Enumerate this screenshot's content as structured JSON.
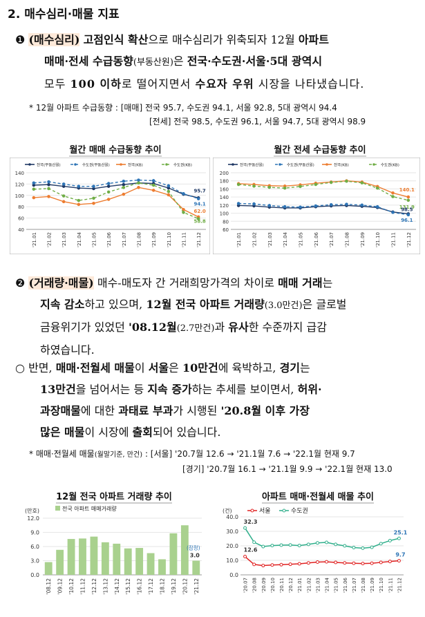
{
  "section_title": "2. 매수심리·매물 지표",
  "p1": {
    "bullet": "❶",
    "tag": "(매수심리)",
    "l1a": "고점인식 확산",
    "l1b": "으로 매수심리가 위축되자 12월",
    "l1c": "아파트",
    "l2a": "매매·전세 수급동향",
    "l2b": "(부동산원)",
    "l2c": "은",
    "l2d": "전국·수도권·서울·5대 광역시",
    "l3a": "모두",
    "l3b": "100 이하",
    "l3c": "로 떨어지면서",
    "l3d": "수요자 우위",
    "l3e": "시장을 나타냈습니다."
  },
  "note1": {
    "line1": "* 12월 아파트 수급동향 : [매매] 전국 95.7, 수도권 94.1, 서울 92.8, 5대 광역시 94.4",
    "line2": "[전세] 전국 98.5, 수도권 96.1, 서울 94.7, 5대 광역시 98.9"
  },
  "chart_titles": {
    "c1": "월간 매매 수급동향 추이",
    "c2": "월간 전세 수급동향 추이",
    "c3": "12월 전국 아파트 거래량 추이",
    "c4": "아파트 매매·전월세 매물 추이"
  },
  "p2": {
    "bullet": "❷",
    "tag": "(거래량·매물)",
    "l1a": "매수-매도자 간 거래희망가격의 차이로",
    "l1b": "매매 거래",
    "l1c": "는",
    "l2a": "지속 감소",
    "l2b": "하고 있으며,",
    "l2c": "12월 전국 아파트 거래량",
    "l2d": "(3.0만건)",
    "l2e": "은 글로벌",
    "l3": "금융위기가 있었던",
    "l3b": "'08.12월",
    "l3c": "(2.7만건)",
    "l3d": "과",
    "l3e": "유사",
    "l3f": "한 수준까지 급감",
    "l4": "하였습니다."
  },
  "p3": {
    "bullet": "○",
    "l1a": "반면,",
    "l1b": "매매·전월세 매물",
    "l1c": "이",
    "l1d": "서울",
    "l1e": "은",
    "l1f": "10만건",
    "l1g": "에 육박하고,",
    "l1h": "경기",
    "l1i": "는",
    "l2a": "13만건",
    "l2b": "을 넘어서는 등",
    "l2c": "지속 증가",
    "l2d": "하는 추세를 보이면서,",
    "l2e": "허위·",
    "l3a": "과장매물",
    "l3b": "에 대한",
    "l3c": "과태료 부과",
    "l3d": "가 시행된",
    "l3e": "'20.8월 이후 가장",
    "l4a": "많은 매물",
    "l4b": "이 시장에",
    "l4c": "출회",
    "l4d": "되어 있습니다."
  },
  "note2": {
    "line1a": "* 매매·전월세 매물",
    "line1b": "(월말기준, 만건)",
    "line1c": ": [서울] '20.7월 12.6 → '21.1월 7.6 → '22.1월 현재 9.7",
    "line2": "[경기] '20.7월 16.1 → '21.1월 9.9 → '22.1월 현재 13.0"
  },
  "chart_data": [
    {
      "type": "line",
      "title": "월간 매매 수급동향 추이",
      "categories": [
        "'21.01",
        "'21.02",
        "'21.03",
        "'21.04",
        "'21.05",
        "'21.06",
        "'21.07",
        "'21.08",
        "'21.09",
        "'21.10",
        "'21.11",
        "'21.12"
      ],
      "ylim": [
        40,
        140
      ],
      "yticks": [
        40,
        60,
        80,
        100,
        120,
        140
      ],
      "series": [
        {
          "name": "전국(부동산원)",
          "color": "#1f3864",
          "dash": "",
          "values": [
            118,
            119,
            116,
            113,
            112,
            116,
            119,
            122,
            121,
            113,
            102,
            95.7
          ]
        },
        {
          "name": "수도권(부동산원)",
          "color": "#2e75b6",
          "dash": "4,3",
          "values": [
            122,
            124,
            120,
            116,
            116,
            121,
            125,
            127,
            126,
            117,
            103,
            94.1
          ]
        },
        {
          "name": "전국(KB)",
          "color": "#ed7d31",
          "dash": "",
          "values": [
            96,
            98,
            89,
            84,
            86,
            93,
            102,
            114,
            109,
            101,
            75,
            62.0
          ]
        },
        {
          "name": "수도권(KB)",
          "color": "#70ad47",
          "dash": "4,3",
          "values": [
            111,
            112,
            99,
            91,
            95,
            106,
            114,
            122,
            118,
            107,
            70,
            58.8
          ]
        }
      ],
      "labels": [
        "95.7",
        "94.1",
        "62.0",
        "58.8"
      ]
    },
    {
      "type": "line",
      "title": "월간 전세 수급동향 추이",
      "categories": [
        "'21.01",
        "'21.02",
        "'21.03",
        "'21.04",
        "'21.05",
        "'21.06",
        "'21.07",
        "'21.08",
        "'21.09",
        "'21.10",
        "'21.11",
        "'21.12"
      ],
      "ylim": [
        60,
        200
      ],
      "yticks": [
        60,
        80,
        100,
        120,
        140,
        160,
        180,
        200
      ],
      "series": [
        {
          "name": "전국(부동산원)",
          "color": "#1f3864",
          "dash": "",
          "values": [
            119,
            118,
            115,
            113,
            113,
            116,
            118,
            119,
            117,
            114,
            103,
            98.5
          ]
        },
        {
          "name": "수도권(부동산원)",
          "color": "#2e75b6",
          "dash": "4,3",
          "values": [
            124,
            123,
            119,
            116,
            115,
            118,
            121,
            122,
            120,
            116,
            102,
            96.1
          ]
        },
        {
          "name": "전국(KB)",
          "color": "#ed7d31",
          "dash": "",
          "values": [
            173,
            171,
            168,
            167,
            170,
            174,
            177,
            180,
            177,
            166,
            150,
            140.1
          ]
        },
        {
          "name": "수도권(KB)",
          "color": "#70ad47",
          "dash": "4,3",
          "values": [
            171,
            167,
            164,
            162,
            166,
            171,
            176,
            179,
            175,
            162,
            141,
            131.9
          ]
        }
      ],
      "labels": [
        "140.1",
        "131.9",
        "98.5",
        "96.1"
      ]
    },
    {
      "type": "bar",
      "title": "12월 전국 아파트 거래량 추이",
      "unit": "(만호)",
      "legend": "전국 아파트 매매거래량",
      "categories": [
        "'08.12",
        "'09.12",
        "'10.12",
        "'11.12",
        "'12.12",
        "'13.12",
        "'14.12",
        "'15.12",
        "'16.12",
        "'17.12",
        "'18.12",
        "'19.12",
        "'20.12",
        "'21.12"
      ],
      "values": [
        2.7,
        5.3,
        7.6,
        7.7,
        8.1,
        6.9,
        6.6,
        5.6,
        5.7,
        4.6,
        3.3,
        8.8,
        10.5,
        3.0
      ],
      "ylim": [
        0,
        12
      ],
      "yticks": [
        "0.0",
        "3.0",
        "6.0",
        "9.0",
        "12.0"
      ],
      "last_note": "(잠정)",
      "last_label": "3.0",
      "color": "#a9d18e"
    },
    {
      "type": "line",
      "title": "아파트 매매·전월세 매물 추이",
      "unit": "(건)",
      "categories": [
        "'20.07",
        "'20.08",
        "'20.09",
        "'20.10",
        "'20.11",
        "'20.12",
        "'21.01",
        "'21.02",
        "'21.03",
        "'21.04",
        "'21.05",
        "'21.06",
        "'21.07",
        "'21.08",
        "'21.09",
        "'21.10",
        "'21.11",
        "'21.12"
      ],
      "ylim": [
        0,
        40
      ],
      "yticks": [
        "0.0",
        "10.0",
        "20.0",
        "30.0",
        "40.0"
      ],
      "series": [
        {
          "name": "서울",
          "color": "#e02020",
          "values": [
            12.6,
            7.2,
            6.4,
            6.8,
            7.0,
            7.3,
            7.6,
            8.2,
            8.8,
            9.0,
            8.6,
            8.2,
            8.0,
            7.8,
            8.0,
            8.6,
            9.2,
            9.7
          ]
        },
        {
          "name": "수도권",
          "color": "#2eae8a",
          "values": [
            32.3,
            22.5,
            19.5,
            20.2,
            20.5,
            20.6,
            20.2,
            21.0,
            22.0,
            22.4,
            21.0,
            20.0,
            18.8,
            18.4,
            19.0,
            21.5,
            23.6,
            25.1
          ]
        }
      ],
      "labels": [
        "32.3",
        "12.6",
        "25.1",
        "9.7"
      ]
    }
  ]
}
